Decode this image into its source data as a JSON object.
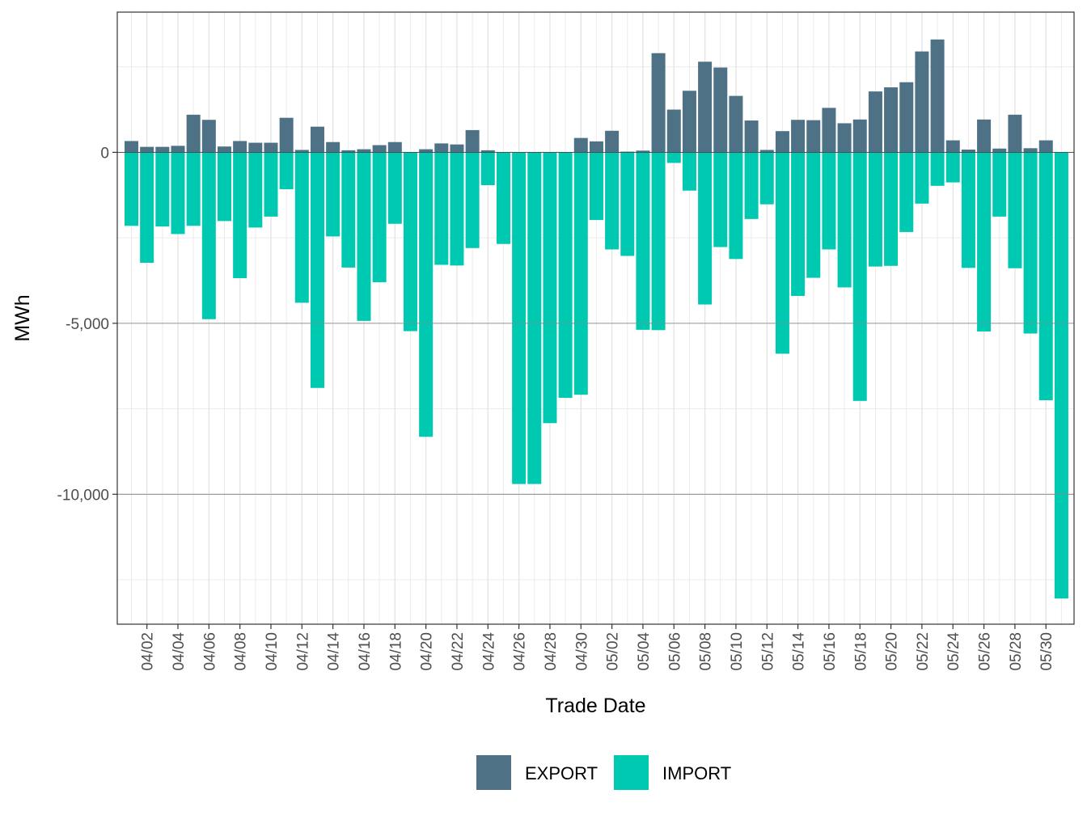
{
  "chart_data": {
    "type": "bar",
    "title": "",
    "xlabel": "Trade Date",
    "ylabel": "MWh",
    "ylim": [
      -13800,
      4100
    ],
    "y_ticks": [
      0,
      -5000,
      -10000
    ],
    "y_tick_labels": [
      "0",
      "-5,000",
      "-10,000"
    ],
    "y_minor_ticks": [
      2500,
      -2500,
      -7500,
      -12500
    ],
    "grid": true,
    "legend_position": "bottom",
    "x_tick_labels": [
      "04/02",
      "04/04",
      "04/06",
      "04/08",
      "04/10",
      "04/12",
      "04/14",
      "04/16",
      "04/18",
      "04/20",
      "04/22",
      "04/24",
      "04/26",
      "04/28",
      "04/30",
      "05/02",
      "05/04",
      "05/06",
      "05/08",
      "05/10",
      "05/12",
      "05/14",
      "05/16",
      "05/18",
      "05/20",
      "05/22",
      "05/24",
      "05/26",
      "05/28",
      "05/30"
    ],
    "categories": [
      "04/01",
      "04/02",
      "04/03",
      "04/04",
      "04/05",
      "04/06",
      "04/07",
      "04/08",
      "04/09",
      "04/10",
      "04/11",
      "04/12",
      "04/13",
      "04/14",
      "04/15",
      "04/16",
      "04/17",
      "04/18",
      "04/19",
      "04/20",
      "04/21",
      "04/22",
      "04/23",
      "04/24",
      "04/25",
      "04/26",
      "04/27",
      "04/28",
      "04/29",
      "04/30",
      "05/01",
      "05/02",
      "05/03",
      "05/04",
      "05/05",
      "05/06",
      "05/07",
      "05/08",
      "05/09",
      "05/10",
      "05/11",
      "05/12",
      "05/13",
      "05/14",
      "05/15",
      "05/16",
      "05/17",
      "05/18",
      "05/19",
      "05/20",
      "05/21",
      "05/22",
      "05/23",
      "05/24",
      "05/25",
      "05/26",
      "05/27",
      "05/28",
      "05/29",
      "05/30",
      "05/31"
    ],
    "series": [
      {
        "name": "EXPORT",
        "color": "#4e7185",
        "values": [
          330,
          160,
          160,
          190,
          1100,
          950,
          170,
          330,
          280,
          280,
          1010,
          70,
          750,
          300,
          60,
          90,
          210,
          300,
          0,
          90,
          260,
          230,
          650,
          60,
          0,
          0,
          0,
          0,
          0,
          420,
          320,
          630,
          20,
          50,
          2900,
          1250,
          1800,
          2650,
          2480,
          1650,
          930,
          70,
          620,
          950,
          940,
          1300,
          850,
          960,
          1780,
          1900,
          2050,
          2950,
          3300,
          350,
          80,
          960,
          110,
          1100,
          120,
          350,
          0
        ]
      },
      {
        "name": "IMPORT",
        "color": "#00c9b1",
        "values": [
          -2150,
          -3230,
          -2170,
          -2390,
          -2150,
          -4880,
          -2010,
          -3680,
          -2200,
          -1880,
          -1080,
          -4400,
          -6890,
          -2460,
          -3370,
          -4930,
          -3800,
          -2090,
          -5230,
          -8320,
          -3290,
          -3310,
          -2800,
          -960,
          -2680,
          -9700,
          -9700,
          -7920,
          -7180,
          -7090,
          -1980,
          -2840,
          -3030,
          -5190,
          -5200,
          -310,
          -1120,
          -4450,
          -2770,
          -3120,
          -1950,
          -1520,
          -5890,
          -4200,
          -3670,
          -2840,
          -3950,
          -7270,
          -3340,
          -3320,
          -2330,
          -1500,
          -980,
          -880,
          -3380,
          -5240,
          -1880,
          -3390,
          -5300,
          -7250,
          -13050
        ]
      }
    ]
  }
}
